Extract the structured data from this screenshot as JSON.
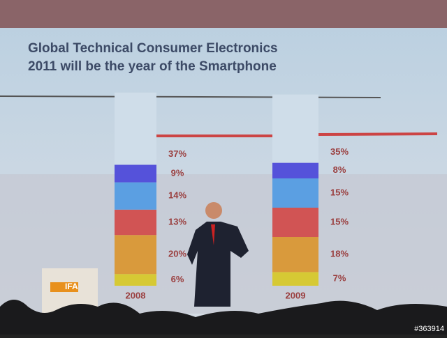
{
  "chart_data": {
    "type": "stacked-bar",
    "title_lines": [
      "Global Technical Consumer Electronics",
      "2011 will be the year of the Smartphone"
    ],
    "categories": [
      "2008",
      "2009"
    ],
    "series": [
      {
        "color": "#d6c934",
        "values": [
          6,
          7
        ],
        "value_labels": [
          "6%",
          "7%"
        ]
      },
      {
        "color": "#d99a3c",
        "values": [
          20,
          18
        ],
        "value_labels": [
          "20%",
          "18%"
        ]
      },
      {
        "color": "#d15454",
        "values": [
          13,
          15
        ],
        "value_labels": [
          "13%",
          "15%"
        ]
      },
      {
        "color": "#5b9fe2",
        "values": [
          14,
          15
        ],
        "value_labels": [
          "14%",
          "15%"
        ]
      },
      {
        "color": "#5552da",
        "values": [
          9,
          8
        ],
        "value_labels": [
          "9%",
          "8%"
        ]
      },
      {
        "color": "#cfdde9",
        "values": [
          37,
          35
        ],
        "value_labels": [
          "37%",
          "35%"
        ]
      }
    ]
  },
  "photo": {
    "podium_logo": "IFA",
    "watermark": "#363914"
  }
}
